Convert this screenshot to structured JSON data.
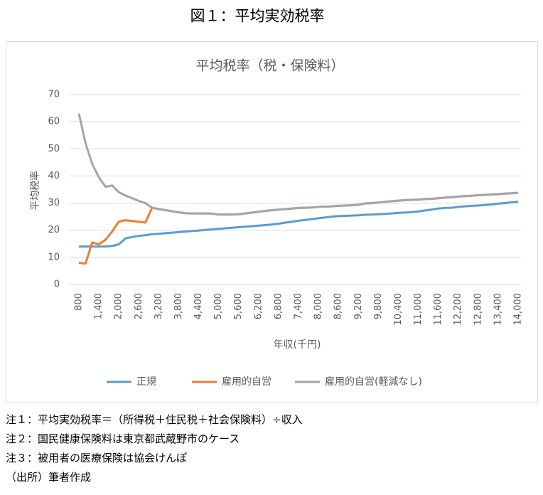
{
  "figure_title": "図１：平均実効税率",
  "notes": [
    "注１：平均実効税率＝（所得税＋住民税＋社会保険料）÷収入",
    "注２：国民健康保険料は東京都武蔵野市のケース",
    "注３：被用者の医療保険は協会けんぽ",
    "（出所）筆者作成"
  ],
  "chart_data": {
    "type": "line",
    "title": "平均税率（税・保険料）",
    "x_label": "年収(千円)",
    "y_label": "平均税率",
    "x": [
      800,
      1000,
      1200,
      1400,
      1600,
      1800,
      2000,
      2200,
      2400,
      2600,
      2800,
      3000,
      3200,
      3400,
      3600,
      3800,
      4000,
      4200,
      4400,
      4600,
      4800,
      5000,
      5200,
      5400,
      5600,
      5800,
      6000,
      6200,
      6400,
      6600,
      6800,
      7000,
      7200,
      7400,
      7600,
      7800,
      8000,
      8200,
      8400,
      8600,
      8800,
      9000,
      9200,
      9400,
      9600,
      9800,
      10000,
      10200,
      10400,
      10600,
      10800,
      11000,
      11200,
      11400,
      11600,
      11800,
      12000,
      12200,
      12400,
      12600,
      12800,
      13000,
      13200,
      13400,
      13600,
      13800,
      14000
    ],
    "series": [
      {
        "name": "正規",
        "color": "#5b9bd5",
        "values": [
          14,
          14,
          14,
          14,
          14,
          14.2,
          14.8,
          17,
          17.5,
          17.9,
          18.2,
          18.5,
          18.7,
          18.9,
          19.1,
          19.3,
          19.5,
          19.7,
          19.9,
          20.1,
          20.3,
          20.5,
          20.7,
          20.9,
          21.1,
          21.3,
          21.5,
          21.7,
          21.9,
          22.1,
          22.4,
          22.8,
          23.1,
          23.5,
          23.8,
          24.1,
          24.4,
          24.7,
          25,
          25.2,
          25.3,
          25.4,
          25.5,
          25.7,
          25.8,
          25.9,
          26,
          26.2,
          26.4,
          26.5,
          26.7,
          26.9,
          27.3,
          27.6,
          28,
          28.2,
          28.3,
          28.6,
          28.8,
          29,
          29.1,
          29.3,
          29.5,
          29.8,
          30,
          30.3,
          30.5
        ]
      },
      {
        "name": "雇用的自営",
        "color": "#ed7d31",
        "values": [
          8,
          7.7,
          15.5,
          14.8,
          16.5,
          19.5,
          23.2,
          23.7,
          23.4,
          23.1,
          22.8,
          28.3,
          27.8,
          27.4,
          27,
          26.6,
          26.3,
          26.2,
          26.2,
          26.2,
          26.1,
          25.8,
          25.8,
          25.8,
          25.9,
          26.2,
          26.5,
          26.8,
          27.1,
          27.4,
          27.6,
          27.8,
          28,
          28.2,
          28.3,
          28.4,
          28.6,
          28.7,
          28.8,
          29,
          29.1,
          29.2,
          29.4,
          29.9,
          30,
          30.2,
          30.5,
          30.7,
          30.9,
          31.1,
          31.2,
          31.3,
          31.5,
          31.6,
          31.8,
          32,
          32.2,
          32.4,
          32.6,
          32.7,
          32.9,
          33,
          33.2,
          33.3,
          33.5,
          33.6,
          33.8
        ]
      },
      {
        "name": "雇用的自営(軽減なし)",
        "color": "#a5a5a5",
        "values": [
          63,
          52,
          44.5,
          39.5,
          36,
          36.5,
          34,
          32.8,
          31.8,
          30.8,
          30,
          28.3,
          27.8,
          27.4,
          27,
          26.6,
          26.3,
          26.2,
          26.2,
          26.2,
          26.1,
          25.8,
          25.8,
          25.8,
          25.9,
          26.2,
          26.5,
          26.8,
          27.1,
          27.4,
          27.6,
          27.8,
          28,
          28.2,
          28.3,
          28.4,
          28.6,
          28.7,
          28.8,
          29,
          29.1,
          29.2,
          29.4,
          29.9,
          30,
          30.2,
          30.5,
          30.7,
          30.9,
          31.1,
          31.2,
          31.3,
          31.5,
          31.6,
          31.8,
          32,
          32.2,
          32.4,
          32.6,
          32.7,
          32.9,
          33,
          33.2,
          33.3,
          33.5,
          33.6,
          33.8
        ]
      }
    ],
    "xlim": [
      800,
      14000
    ],
    "xticks": [
      800,
      {
        "value": 1400,
        "label": "1,400"
      },
      {
        "value": 2000,
        "label": "2,000"
      },
      {
        "value": 2600,
        "label": "2,600"
      },
      {
        "value": 3200,
        "label": "3,200"
      },
      {
        "value": 3800,
        "label": "3,800"
      },
      {
        "value": 4400,
        "label": "4,400"
      },
      {
        "value": 5000,
        "label": "5,000"
      },
      {
        "value": 5600,
        "label": "5,600"
      },
      {
        "value": 6200,
        "label": "6,200"
      },
      {
        "value": 6800,
        "label": "6,800"
      },
      {
        "value": 7400,
        "label": "7,400"
      },
      {
        "value": 8000,
        "label": "8,000"
      },
      {
        "value": 8600,
        "label": "8,600"
      },
      {
        "value": 9200,
        "label": "9,200"
      },
      {
        "value": 9800,
        "label": "9,800"
      },
      {
        "value": 10400,
        "label": "10,400"
      },
      {
        "value": 11000,
        "label": "11,000"
      },
      {
        "value": 11600,
        "label": "11,600"
      },
      {
        "value": 12200,
        "label": "12,200"
      },
      {
        "value": 12800,
        "label": "12,800"
      },
      {
        "value": 13400,
        "label": "13,400"
      },
      {
        "value": 14000,
        "label": "14,000"
      }
    ],
    "ylim": [
      0,
      70
    ],
    "yticks": [
      0,
      10,
      20,
      30,
      40,
      50,
      60,
      70
    ],
    "grid": true,
    "legend": "bottom"
  }
}
